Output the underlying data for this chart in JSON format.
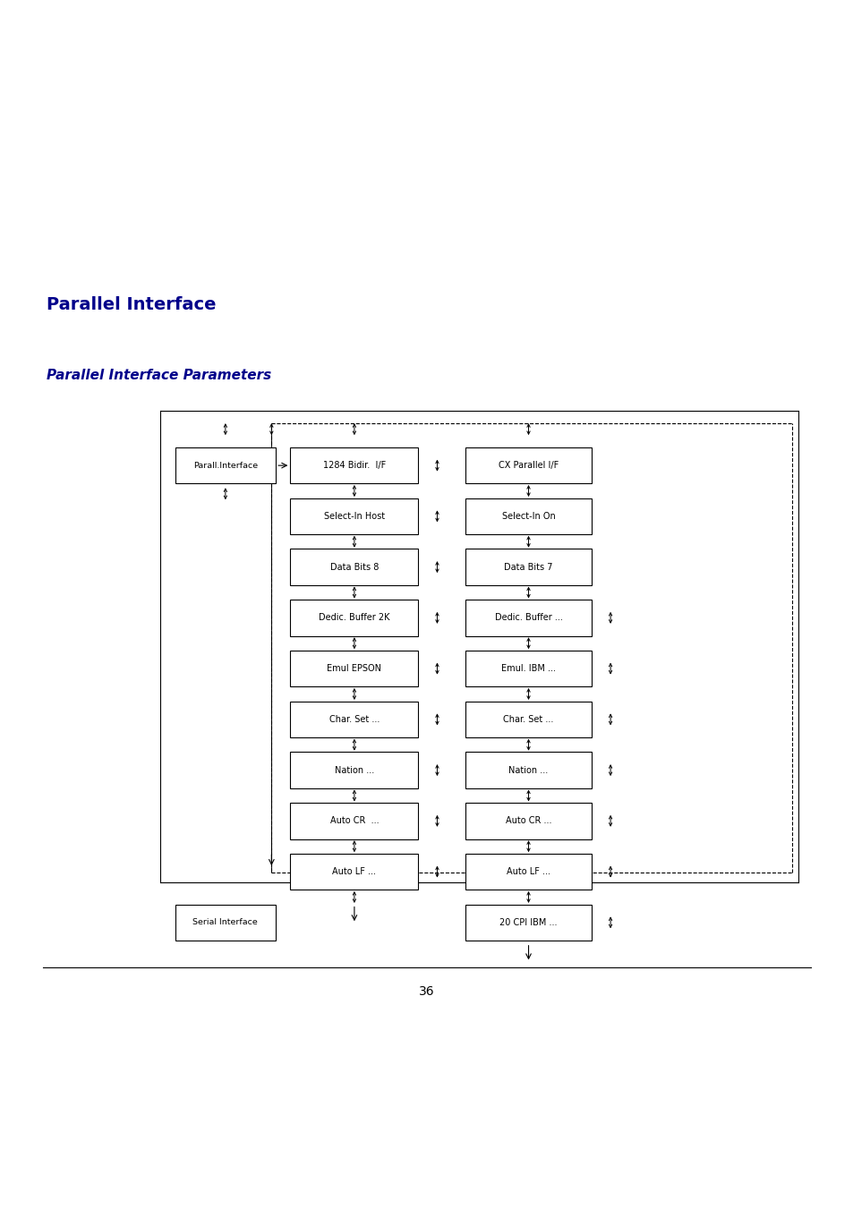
{
  "title1": "Parallel Interface",
  "title2": "Parallel Interface Parameters",
  "title1_color": "#00008B",
  "title2_color": "#00008B",
  "page_number": "36",
  "bg_color": "#ffffff",
  "mid_boxes": [
    {
      "label": "1284 Bidir.  I/F",
      "has_mid_arrow": true
    },
    {
      "label": "Select-In Host",
      "has_mid_arrow": true
    },
    {
      "label": "Data Bits 8",
      "has_mid_arrow": true
    },
    {
      "label": "Dedic. Buffer 2K",
      "has_mid_arrow": true
    },
    {
      "label": "Emul EPSON",
      "has_mid_arrow": true
    },
    {
      "label": "Char. Set ...",
      "has_mid_arrow": true
    },
    {
      "label": "Nation ...",
      "has_mid_arrow": true
    },
    {
      "label": "Auto CR  ...",
      "has_mid_arrow": true
    },
    {
      "label": "Auto LF ...",
      "has_mid_arrow": true
    }
  ],
  "right_boxes": [
    {
      "label": "CX Parallel I/F",
      "has_right_arrow": false
    },
    {
      "label": "Select-In On",
      "has_right_arrow": false
    },
    {
      "label": "Data Bits 7",
      "has_right_arrow": false
    },
    {
      "label": "Dedic. Buffer ...",
      "has_right_arrow": true
    },
    {
      "label": "Emul. IBM ...",
      "has_right_arrow": true
    },
    {
      "label": "Char. Set ...",
      "has_right_arrow": true
    },
    {
      "label": "Nation ...",
      "has_right_arrow": true
    },
    {
      "label": "Auto CR ...",
      "has_right_arrow": true
    },
    {
      "label": "Auto LF ...",
      "has_right_arrow": true
    },
    {
      "label": "20 CPI IBM ...",
      "has_right_arrow": true
    }
  ]
}
